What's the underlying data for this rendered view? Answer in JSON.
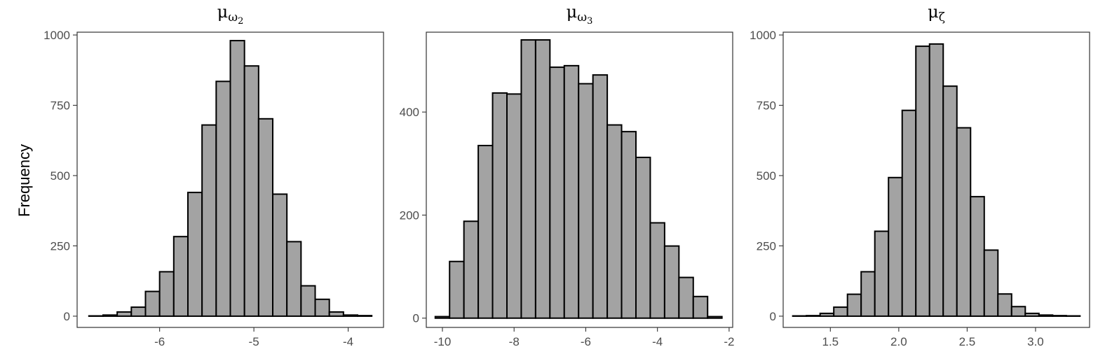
{
  "figure": {
    "ylabel": "Frequency"
  },
  "chart_data": [
    {
      "type": "histogram",
      "title": {
        "base": "μ",
        "sub": "ω",
        "subsub": "2"
      },
      "xlim": [
        -6.875,
        -3.625
      ],
      "ylim": [
        -40,
        1010
      ],
      "xticks": [
        -6,
        -5,
        -4
      ],
      "xtick_labels": [
        "-6",
        "-5",
        "-4"
      ],
      "yticks": [
        0,
        250,
        500,
        750,
        1000
      ],
      "ytick_labels": [
        "0",
        "250",
        "500",
        "750",
        "1000"
      ],
      "bin_width": 0.15,
      "bins": [
        -6.75,
        -6.6,
        -6.45,
        -6.3,
        -6.15,
        -6.0,
        -5.85,
        -5.7,
        -5.55,
        -5.4,
        -5.25,
        -5.1,
        -4.95,
        -4.8,
        -4.65,
        -4.5,
        -4.35,
        -4.2,
        -4.05,
        -3.9,
        -3.75
      ],
      "values": [
        1,
        4,
        15,
        32,
        88,
        158,
        283,
        440,
        680,
        835,
        980,
        890,
        702,
        434,
        265,
        108,
        60,
        15,
        4,
        2
      ]
    },
    {
      "type": "histogram",
      "title": {
        "base": "μ",
        "sub": "ω",
        "subsub": "3"
      },
      "xlim": [
        -10.45,
        -1.9
      ],
      "ylim": [
        -18,
        555
      ],
      "xticks": [
        -10,
        -8,
        -6,
        -4,
        -2
      ],
      "xtick_labels": [
        "-10",
        "-8",
        "-6",
        "-4",
        "-2"
      ],
      "yticks": [
        0,
        200,
        400
      ],
      "ytick_labels": [
        "0",
        "200",
        "400"
      ],
      "bin_width": 0.4,
      "bins": [
        -10.2,
        -9.8,
        -9.4,
        -9.0,
        -8.6,
        -8.2,
        -7.8,
        -7.4,
        -7.0,
        -6.6,
        -6.2,
        -5.8,
        -5.4,
        -5.0,
        -4.6,
        -4.2,
        -3.8,
        -3.4,
        -3.0,
        -2.6,
        -2.2
      ],
      "values": [
        3,
        110,
        188,
        335,
        437,
        435,
        540,
        540,
        487,
        490,
        455,
        472,
        375,
        362,
        312,
        185,
        140,
        79,
        42,
        3
      ]
    },
    {
      "type": "histogram",
      "title": {
        "base": "μ",
        "sub": "ζ",
        "subsub": ""
      },
      "xlim": [
        1.155,
        3.395
      ],
      "ylim": [
        -40,
        1010
      ],
      "xticks": [
        1.5,
        2.0,
        2.5,
        3.0
      ],
      "xtick_labels": [
        "1.5",
        "2.0",
        "2.5",
        "3.0"
      ],
      "yticks": [
        0,
        250,
        500,
        750,
        1000
      ],
      "ytick_labels": [
        "0",
        "250",
        "500",
        "750",
        "1000"
      ],
      "bin_width": 0.1,
      "bins": [
        1.225,
        1.325,
        1.425,
        1.525,
        1.625,
        1.725,
        1.825,
        1.925,
        2.025,
        2.125,
        2.225,
        2.325,
        2.425,
        2.525,
        2.625,
        2.725,
        2.825,
        2.925,
        3.025,
        3.125,
        3.225,
        3.325
      ],
      "values": [
        1,
        2,
        10,
        32,
        78,
        158,
        302,
        493,
        732,
        960,
        968,
        818,
        670,
        425,
        235,
        79,
        34,
        10,
        4,
        2,
        1
      ]
    }
  ]
}
